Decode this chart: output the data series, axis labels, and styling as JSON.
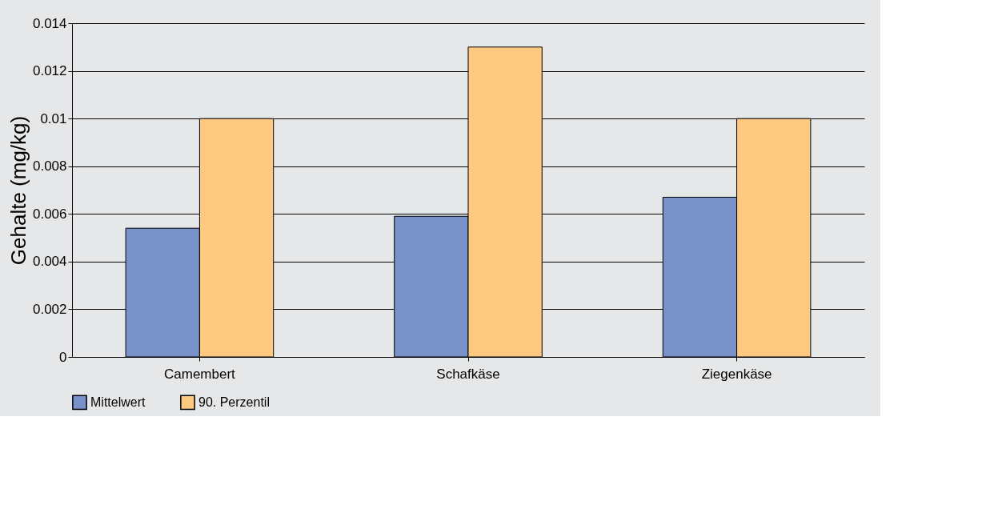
{
  "chart_data": {
    "type": "bar",
    "ylabel": "Gehalte (mg/kg)",
    "categories": [
      "Camembert",
      "Schafkäse",
      "Ziegenkäse"
    ],
    "series": [
      {
        "name": "Mittelwert",
        "color": "#7891c8",
        "values": [
          0.0054,
          0.0059,
          0.0067
        ]
      },
      {
        "name": "90. Perzentil",
        "color": "#fdc880",
        "values": [
          0.01,
          0.013,
          0.01
        ]
      }
    ],
    "ylim": [
      0,
      0.014
    ],
    "yticks": [
      0,
      0.002,
      0.004,
      0.006,
      0.008,
      0.01,
      0.012,
      0.014
    ],
    "grid": "y",
    "legend": "bottom"
  }
}
